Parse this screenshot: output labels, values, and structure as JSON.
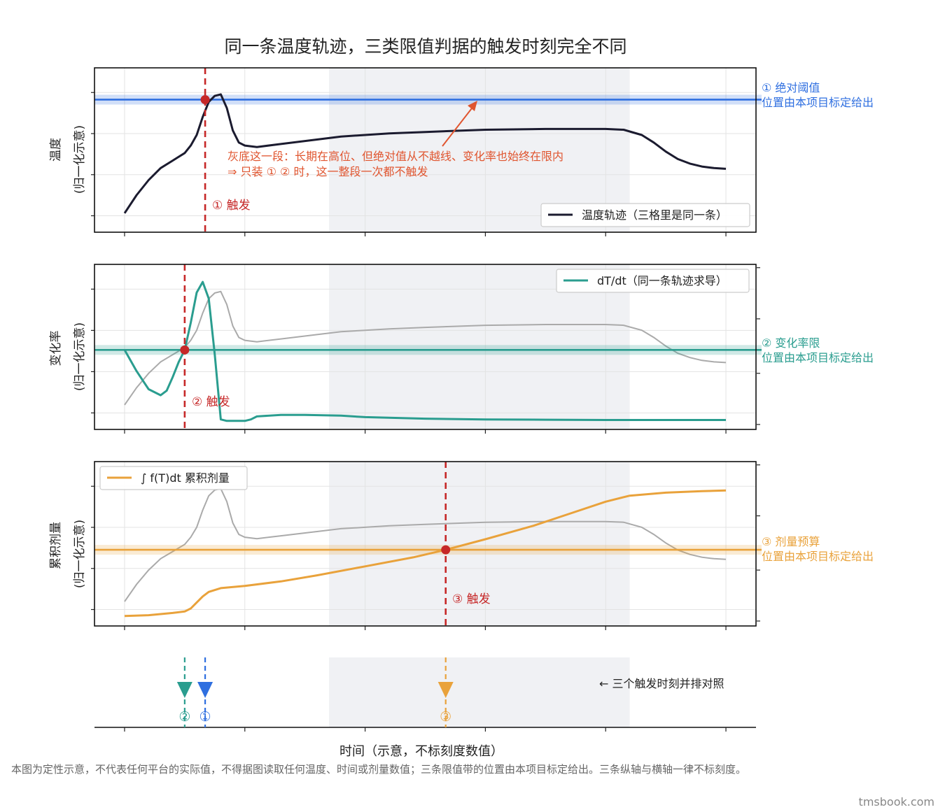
{
  "title": "同一条温度轨迹，三类限值判据的触发时刻完全不同",
  "xlabel": "时间（示意，不标刻度数值）",
  "footnote": "本图为定性示意，不代表任何平台的实际值，不得据图读取任何温度、时间或剂量数值；三条限值带的位置由本项目标定给出。三条纵轴与横轴一律不标刻度。",
  "watermark": "tmsbook.com",
  "colors": {
    "temperature": "#1b1b2f",
    "absolute": "#2f6fe0",
    "rate": "#2a9d8f",
    "dose": "#e9a23b",
    "trigger": "#c62828",
    "context": "#aaaaaa",
    "shade": "#dde1e6",
    "annotation": "#e0552f"
  },
  "panels": {
    "temp": {
      "ylabel1": "温度",
      "ylabel2": "(归一化示意)",
      "legend": "温度轨迹（三格里是同一条）",
      "limit_label1": "① 绝对阈值",
      "limit_label2": "位置由本项目标定给出",
      "trigger_label": "① 触发",
      "annotation1": "灰底这一段：长期在高位、但绝对值从不越线、变化率也始终在限内",
      "annotation2": "⇒ 只装 ① ② 时，这一整段一次都不触发"
    },
    "rate": {
      "ylabel1": "变化率",
      "ylabel2": "(归一化示意)",
      "legend": "dT/dt（同一条轨迹求导）",
      "limit_label1": "② 变化率限",
      "limit_label2": "位置由本项目标定给出",
      "trigger_label": "② 触发"
    },
    "dose": {
      "ylabel1": "累积剂量",
      "ylabel2": "(归一化示意)",
      "legend": "∫ f(T)dt 累积剂量",
      "limit_label1": "③ 剂量预算",
      "limit_label2": "位置由本项目标定给出",
      "trigger_label": "③ 触发"
    },
    "timeline": {
      "note": "← 三个触发时刻并排对照",
      "marker1": "①",
      "marker2": "②",
      "marker3": "③"
    }
  },
  "chart_data": {
    "type": "line",
    "x_range": [
      -0.25,
      5.25
    ],
    "shaded_x": [
      1.7,
      4.2
    ],
    "trigger_x": {
      "absolute": 0.67,
      "rate": 0.5,
      "dose": 2.67
    },
    "limits_norm": {
      "absolute": 0.835,
      "rate": 0.48,
      "dose": 0.46
    },
    "temperature": {
      "x": [
        0.0,
        0.1,
        0.2,
        0.3,
        0.4,
        0.5,
        0.55,
        0.6,
        0.65,
        0.7,
        0.75,
        0.8,
        0.85,
        0.9,
        0.95,
        1.0,
        1.1,
        1.3,
        1.6,
        1.8,
        2.0,
        2.2,
        2.5,
        3.0,
        3.5,
        4.0,
        4.15,
        4.3,
        4.4,
        4.5,
        4.6,
        4.7,
        4.8,
        4.9,
        5.0
      ],
      "y": [
        0.08,
        0.2,
        0.3,
        0.38,
        0.43,
        0.48,
        0.53,
        0.6,
        0.72,
        0.82,
        0.86,
        0.87,
        0.78,
        0.63,
        0.55,
        0.53,
        0.52,
        0.54,
        0.57,
        0.59,
        0.6,
        0.61,
        0.62,
        0.635,
        0.64,
        0.64,
        0.635,
        0.6,
        0.55,
        0.49,
        0.44,
        0.41,
        0.39,
        0.38,
        0.375
      ]
    },
    "rate": {
      "x": [
        0.0,
        0.1,
        0.2,
        0.3,
        0.35,
        0.4,
        0.45,
        0.5,
        0.55,
        0.6,
        0.65,
        0.7,
        0.75,
        0.8,
        0.85,
        0.9,
        1.0,
        1.05,
        1.1,
        1.3,
        1.5,
        1.8,
        2.0,
        2.5,
        3.0,
        3.5,
        4.0,
        4.5,
        5.0
      ],
      "y": [
        0.48,
        0.34,
        0.22,
        0.18,
        0.21,
        0.3,
        0.4,
        0.48,
        0.66,
        0.86,
        0.93,
        0.82,
        0.45,
        0.02,
        0.01,
        0.01,
        0.01,
        0.02,
        0.04,
        0.05,
        0.05,
        0.045,
        0.035,
        0.025,
        0.02,
        0.018,
        0.016,
        0.016,
        0.016
      ]
    },
    "dose": {
      "x": [
        0.0,
        0.2,
        0.4,
        0.5,
        0.55,
        0.6,
        0.65,
        0.7,
        0.8,
        1.0,
        1.3,
        1.6,
        2.0,
        2.4,
        2.67,
        3.0,
        3.4,
        3.7,
        4.0,
        4.2,
        4.5,
        4.8,
        5.0
      ],
      "y": [
        0.02,
        0.025,
        0.04,
        0.05,
        0.07,
        0.11,
        0.15,
        0.18,
        0.205,
        0.22,
        0.25,
        0.29,
        0.35,
        0.41,
        0.46,
        0.53,
        0.62,
        0.7,
        0.78,
        0.82,
        0.84,
        0.85,
        0.855
      ]
    }
  }
}
